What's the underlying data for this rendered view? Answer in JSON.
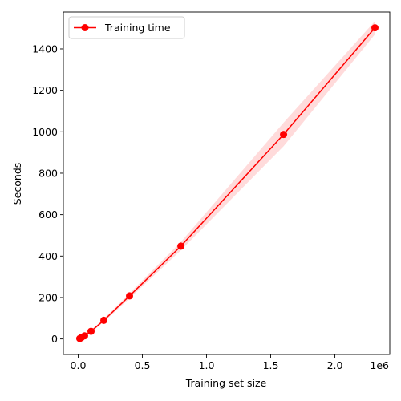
{
  "chart_data": {
    "type": "line",
    "title": "",
    "xlabel": "Training set size",
    "ylabel": "Seconds",
    "x_offset_label": "1e6",
    "xlim": [
      -0.1156,
      2.4276
    ],
    "ylim": [
      -75,
      1578
    ],
    "x_ticks": [
      0.0,
      0.5,
      1.0,
      1.5,
      2.0
    ],
    "x_tick_labels": [
      "0.0",
      "0.5",
      "1.0",
      "1.5",
      "2.0"
    ],
    "y_ticks": [
      0,
      200,
      400,
      600,
      800,
      1000,
      1200,
      1400
    ],
    "y_tick_labels": [
      "0",
      "200",
      "400",
      "600",
      "800",
      "1000",
      "1200",
      "1400"
    ],
    "grid": false,
    "legend": "top-left",
    "series": [
      {
        "name": "Training time",
        "color": "#ff0000",
        "band_color": "#ffcccc",
        "x": [
          0.0125,
          0.025,
          0.05,
          0.1,
          0.2,
          0.4,
          0.8,
          1.6,
          2.312
        ],
        "y": [
          2,
          7,
          15,
          37,
          90,
          208,
          448,
          987,
          1502
        ],
        "y_lower": [
          1,
          5,
          12,
          32,
          82,
          196,
          428,
          930,
          1470
        ],
        "y_upper": [
          3,
          9,
          18,
          42,
          98,
          220,
          468,
          1044,
          1534
        ]
      }
    ]
  }
}
